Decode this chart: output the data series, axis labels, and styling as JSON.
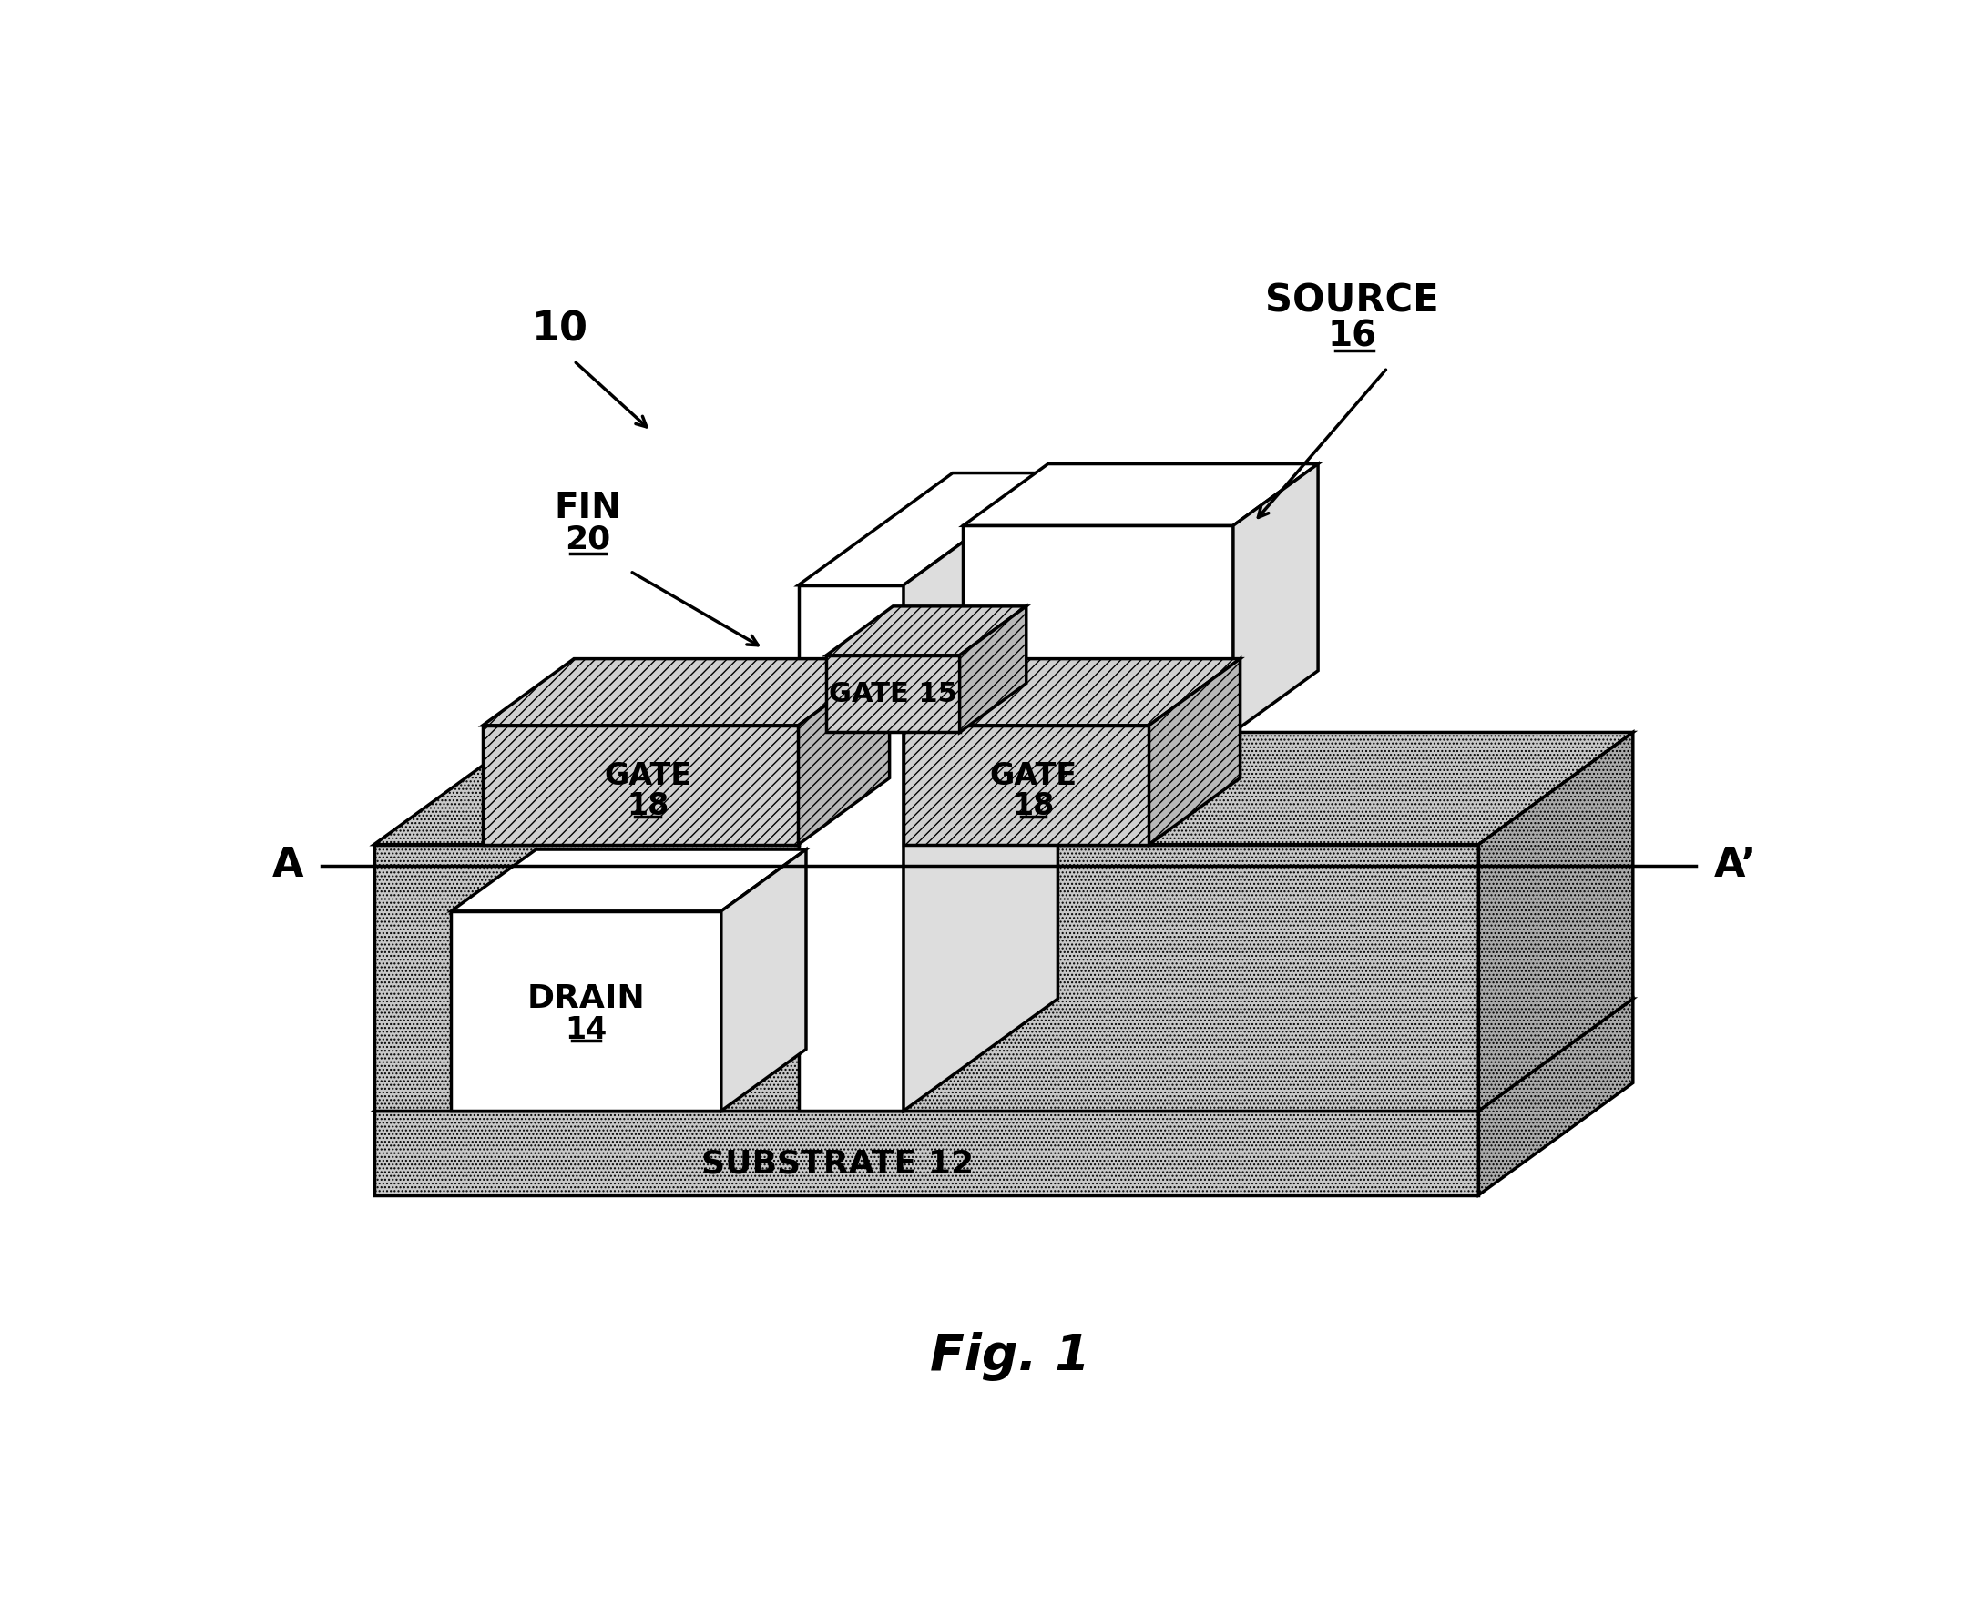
{
  "bg_color": "#ffffff",
  "dot_fill": "#c8c8c8",
  "dot_fill_dark": "#aaaaaa",
  "white_fill": "#ffffff",
  "white_fill_dark": "#dddddd",
  "hatch_fill": "#d0d0d0",
  "hatch_fill_dark": "#b8b8b8",
  "lw": 2.5,
  "substrate_label": "SUBSTRATE 12",
  "drain_label": "DRAIN",
  "drain_ref": "14",
  "source_label": "SOURCE",
  "source_ref": "16",
  "gate15_label": "GATE 15",
  "gate18_label": "GATE",
  "gate18_ref": "18",
  "fig_label": "Fig. 1",
  "label_10": "10",
  "label_fin": "FIN",
  "label_fin_ref": "20",
  "label_A": "A",
  "label_Aprime": "A’"
}
